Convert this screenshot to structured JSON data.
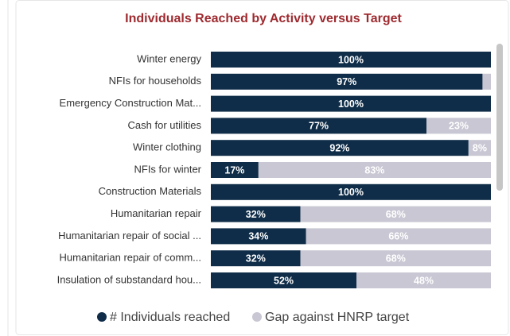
{
  "chart_data": {
    "type": "stacked_bar_horizontal",
    "title": "Individuals Reached by Activity versus Target",
    "categories": [
      "Winter energy",
      "NFIs for households",
      "Emergency Construction Mat...",
      "Cash for utilities",
      "Winter clothing",
      "NFIs for winter",
      "Construction Materials",
      "Humanitarian repair",
      "Humanitarian repair of social ...",
      "Humanitarian repair of comm...",
      "Insulation of substandard hou..."
    ],
    "xlim": [
      0,
      100
    ],
    "series": [
      {
        "name": "# Individuals reached",
        "color": "#0f2d48",
        "values": [
          100,
          97,
          100,
          77,
          92,
          17,
          100,
          32,
          34,
          32,
          52
        ],
        "value_labels": [
          "100%",
          "97%",
          "100%",
          "77%",
          "92%",
          "17%",
          "100%",
          "32%",
          "34%",
          "32%",
          "52%"
        ]
      },
      {
        "name": "Gap against HNRP target",
        "color": "#c8c7d3",
        "values": [
          0,
          3,
          0,
          23,
          8,
          83,
          0,
          68,
          66,
          68,
          48
        ],
        "value_labels": [
          null,
          null,
          null,
          "23%",
          "8%",
          "83%",
          null,
          "68%",
          "66%",
          "68%",
          "48%"
        ]
      }
    ],
    "legend": "bottom"
  }
}
